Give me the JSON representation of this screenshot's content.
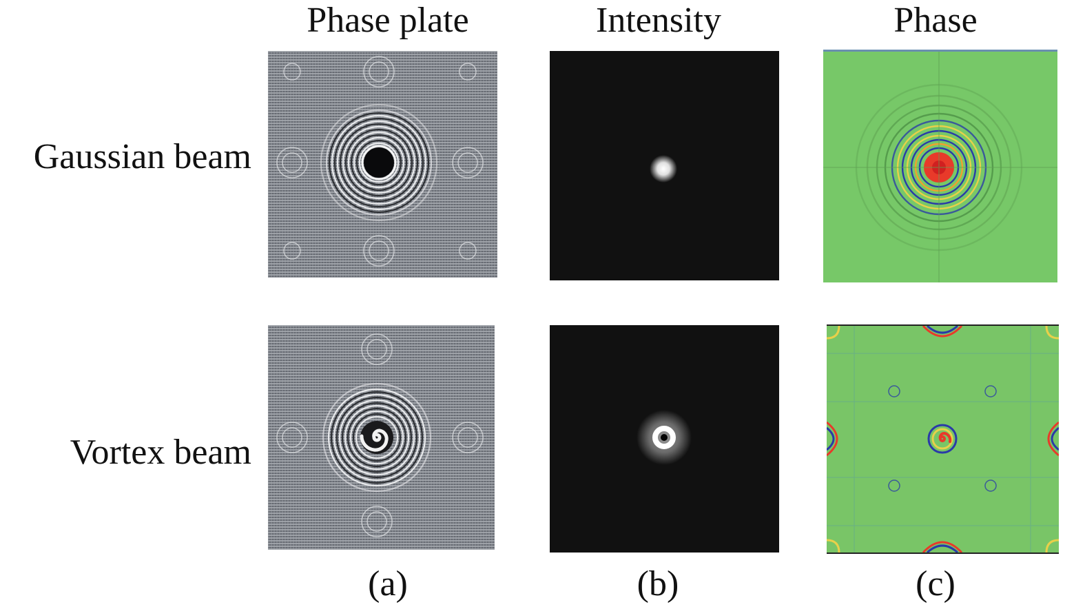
{
  "figure": {
    "column_titles": [
      "Phase plate",
      "Intensity",
      "Phase"
    ],
    "row_labels": [
      "Gaussian beam",
      "Vortex beam"
    ],
    "subfigure_labels": [
      "(a)",
      "(b)",
      "(c)"
    ]
  },
  "colors": {
    "phase_plate_gray": "#7c8088",
    "intensity_background": "#111111",
    "phase_background": "#77c868",
    "phase_center_red": "#e83a2a",
    "phase_ring_blue": "#2a3aa8"
  }
}
